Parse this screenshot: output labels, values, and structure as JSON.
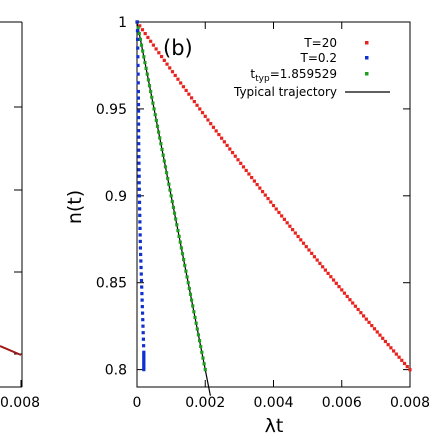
{
  "chart_data": [
    {
      "type": "line",
      "note_visible": "partially cropped left panel",
      "xtick_labels": [
        "0.008"
      ],
      "series": [
        {
          "values": [
            [
              0.0075,
              0.81
            ],
            [
              0.008,
              0.8
            ]
          ]
        }
      ]
    },
    {
      "type": "scatter",
      "panel_label": "(b)",
      "xlabel": "λt",
      "ylabel": "n(t)",
      "xlim": [
        0,
        0.008
      ],
      "ylim": [
        0.79,
        1.0
      ],
      "xticks": [
        0,
        0.002,
        0.004,
        0.006,
        0.008
      ],
      "xtick_labels": [
        "0",
        "0.002",
        "0.004",
        "0.006",
        "0.008"
      ],
      "yticks": [
        0.8,
        0.85,
        0.9,
        0.95,
        1.0
      ],
      "ytick_labels": [
        "0.8",
        "0.85",
        "0.9",
        "0.95",
        "1"
      ],
      "grid": false,
      "legend_position": "top-right",
      "series": [
        {
          "name": "T=20",
          "color": "#e8231f",
          "marker": "square",
          "kind": "decay",
          "rate": 27.9,
          "x_end": 0.008
        },
        {
          "name": "T=0.2",
          "color": "#1030d0",
          "marker": "square",
          "kind": "near-vertical",
          "x_points": [
            1e-05,
            4e-05,
            5e-05,
            7e-05,
            0.0001,
            0.00015,
            0.0002,
            0.0002
          ],
          "y_points": [
            1.0,
            0.96,
            0.93,
            0.9,
            0.87,
            0.84,
            0.81,
            0.8
          ]
        },
        {
          "name_prefix": "t",
          "name_sub": "typ",
          "name_suffix": "=1.859529",
          "color": "#1f9d1f",
          "marker": "square",
          "kind": "linear",
          "slope": -100,
          "x_end": 0.002
        },
        {
          "name": "Typical trajectory",
          "color": "#000000",
          "marker": "line",
          "kind": "linear",
          "slope": -100,
          "x_end": 0.00215
        }
      ]
    }
  ]
}
